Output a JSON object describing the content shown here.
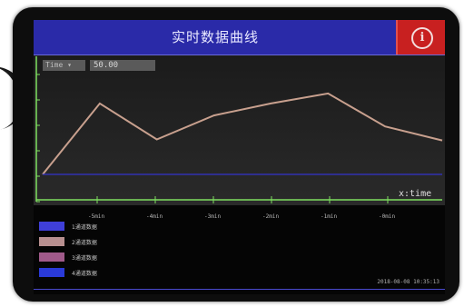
{
  "header": {
    "title": "实时数据曲线",
    "alarm_icon": "alarm-icon",
    "alarm_glyph": "i"
  },
  "controls": {
    "unit_select": "Time ▾",
    "value": "50.00"
  },
  "chart_data": {
    "type": "line",
    "xlabel": "x:time",
    "x": [
      0,
      1,
      2,
      3,
      4,
      5,
      6,
      7
    ],
    "x_ticks": [
      "-5min",
      "-4min",
      "-3min",
      "-2min",
      "-1min",
      "-0min"
    ],
    "ylim": [
      0,
      100
    ],
    "grid": false,
    "series": [
      {
        "values": [
          0,
          71,
          35,
          59,
          71,
          81,
          48,
          34
        ],
        "color": "#c8a08e"
      },
      {
        "values": [
          0,
          0,
          0,
          0,
          0,
          0,
          0,
          0
        ],
        "color": "#3333cc"
      }
    ]
  },
  "legend": [
    {
      "label": "1通道数据",
      "color": "#3f3fd8"
    },
    {
      "label": "2通道数据",
      "color": "#b89090"
    },
    {
      "label": "3通道数据",
      "color": "#a05a8a"
    },
    {
      "label": "4通道数据",
      "color": "#2a3ad8"
    }
  ],
  "status": {
    "timestamp": "2018-08-08 10:35:13"
  },
  "colors": {
    "title_bar": "#2a2aa8",
    "alarm_button": "#c82020",
    "axis": "#7fe060"
  }
}
